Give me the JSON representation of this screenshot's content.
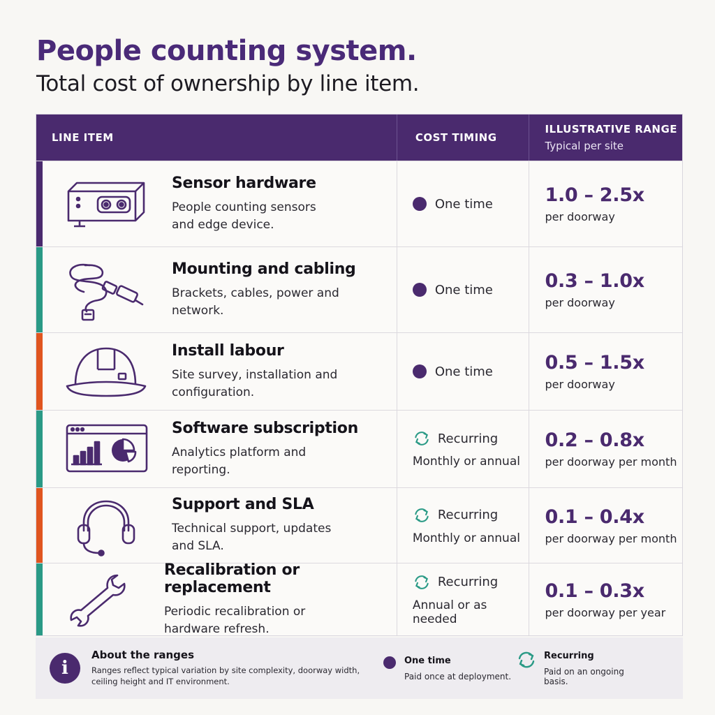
{
  "header": {
    "title": "People counting system.",
    "subtitle": "Total cost of ownership by line item."
  },
  "table": {
    "columns": {
      "line_item": "LINE ITEM",
      "cost_timing": "COST TIMING",
      "range": "ILLUSTRATIVE RANGE",
      "range_sub": "Typical per site"
    },
    "rows": [
      {
        "icon": "sensor-device-icon",
        "accent": "#4a2a6e",
        "name": "Sensor hardware",
        "desc": "People counting sensors and edge device.",
        "timing": "One time",
        "timing_type": "one-time",
        "timing_sub": "",
        "range": "1.0 – 2.5x",
        "unit": "per doorway"
      },
      {
        "icon": "cable-icon",
        "accent": "#2a9a86",
        "name": "Mounting and cabling",
        "desc": "Brackets, cables, power and network.",
        "timing": "One time",
        "timing_type": "one-time",
        "timing_sub": "",
        "range": "0.3 – 1.0x",
        "unit": "per doorway"
      },
      {
        "icon": "hard-hat-icon",
        "accent": "#e0551f",
        "name": "Install labour",
        "desc": "Site survey, installation and configuration.",
        "timing": "One time",
        "timing_type": "one-time",
        "timing_sub": "",
        "range": "0.5 – 1.5x",
        "unit": "per doorway"
      },
      {
        "icon": "analytics-dashboard-icon",
        "accent": "#2a9a86",
        "name": "Software subscription",
        "desc": "Analytics platform and reporting.",
        "timing": "Recurring",
        "timing_type": "recurring",
        "timing_sub": "Monthly or annual",
        "range": "0.2 – 0.8x",
        "unit": "per doorway per month"
      },
      {
        "icon": "headset-icon",
        "accent": "#e0551f",
        "name": "Support and SLA",
        "desc": "Technical support, updates and SLA.",
        "timing": "Recurring",
        "timing_type": "recurring",
        "timing_sub": "Monthly or annual",
        "range": "0.1 – 0.4x",
        "unit": "per doorway per month"
      },
      {
        "icon": "wrench-icon",
        "accent": "#2a9a86",
        "name": "Recalibration or replacement",
        "desc": "Periodic recalibration or hardware refresh.",
        "timing": "Recurring",
        "timing_type": "recurring",
        "timing_sub": "Annual or as needed",
        "range": "0.1 – 0.3x",
        "unit": "per doorway per year"
      }
    ]
  },
  "footer": {
    "about_title": "About the ranges",
    "about_desc": "Ranges reflect typical variation by site complexity, doorway width, ceiling height and IT environment.",
    "legend_one_time_title": "One time",
    "legend_one_time_desc": "Paid once at deployment.",
    "legend_recurring_title": "Recurring",
    "legend_recurring_desc": "Paid on an ongoing basis."
  },
  "colors": {
    "brand_purple": "#4a2a6e",
    "teal": "#2a9a86",
    "orange": "#e0551f"
  }
}
